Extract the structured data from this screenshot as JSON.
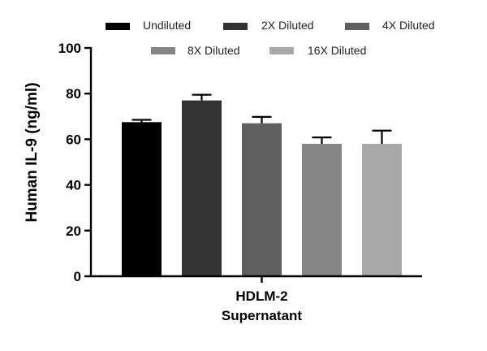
{
  "chart_data": {
    "type": "bar",
    "title": "",
    "ylabel": "Human IL-9 (ng/ml)",
    "xlabel": [
      "HDLM-2",
      "Supernatant"
    ],
    "ylim": [
      0,
      100
    ],
    "yticks": [
      0,
      20,
      40,
      60,
      80,
      100
    ],
    "ytick_labels": [
      "0",
      "20",
      "40",
      "60",
      "80",
      "100"
    ],
    "legend_position": "top",
    "series": [
      {
        "name": "Undiluted",
        "value": 67.5,
        "error": 1.0,
        "color": "#000000"
      },
      {
        "name": "2X Diluted",
        "value": 77.0,
        "error": 2.5,
        "color": "#333333"
      },
      {
        "name": "4X Diluted",
        "value": 67.0,
        "error": 2.8,
        "color": "#5f5f5f"
      },
      {
        "name": "8X Diluted",
        "value": 58.0,
        "error": 2.8,
        "color": "#858585"
      },
      {
        "name": "16X Diluted",
        "value": 58.0,
        "error": 5.8,
        "color": "#a8a8a8"
      }
    ]
  }
}
